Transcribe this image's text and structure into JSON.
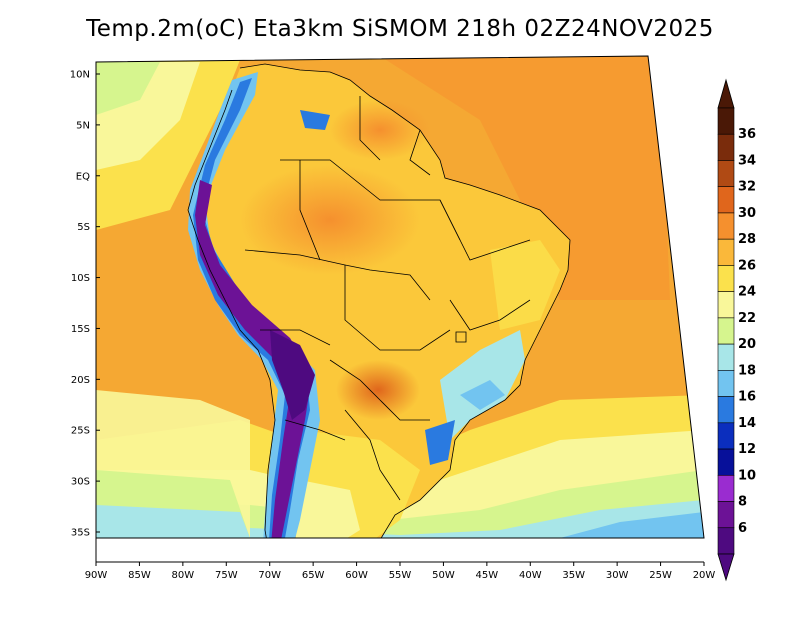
{
  "title": "Temp.2m(oC) Eta3km SiSMOM 218h 02Z24NOV2025",
  "map": {
    "lat_labels": [
      {
        "text": "10N",
        "lat": 10
      },
      {
        "text": "5N",
        "lat": 5
      },
      {
        "text": "EQ",
        "lat": 0
      },
      {
        "text": "5S",
        "lat": -5
      },
      {
        "text": "10S",
        "lat": -10
      },
      {
        "text": "15S",
        "lat": -15
      },
      {
        "text": "20S",
        "lat": -20
      },
      {
        "text": "25S",
        "lat": -25
      },
      {
        "text": "30S",
        "lat": -30
      },
      {
        "text": "35S",
        "lat": -35
      }
    ],
    "lon_labels": [
      {
        "text": "90W",
        "lon": -90
      },
      {
        "text": "85W",
        "lon": -85
      },
      {
        "text": "80W",
        "lon": -80
      },
      {
        "text": "75W",
        "lon": -75
      },
      {
        "text": "70W",
        "lon": -70
      },
      {
        "text": "65W",
        "lon": -65
      },
      {
        "text": "60W",
        "lon": -60
      },
      {
        "text": "55W",
        "lon": -55
      },
      {
        "text": "50W",
        "lon": -50
      },
      {
        "text": "45W",
        "lon": -45
      },
      {
        "text": "40W",
        "lon": -40
      },
      {
        "text": "35W",
        "lon": -35
      },
      {
        "text": "30W",
        "lon": -30
      },
      {
        "text": "25W",
        "lon": -25
      },
      {
        "text": "20W",
        "lon": -20
      }
    ],
    "ocean_color": "#fdb238",
    "land_color": "#fbc83a"
  },
  "colorbar": {
    "labels": [
      "36",
      "34",
      "32",
      "30",
      "28",
      "26",
      "24",
      "22",
      "20",
      "18",
      "16",
      "14",
      "12",
      "10",
      "8",
      "6"
    ],
    "colors": [
      "#4a1806",
      "#7a2c0c",
      "#b04a14",
      "#e0661c",
      "#f5902e",
      "#fab83a",
      "#fbe14c",
      "#f9f79a",
      "#d6f58e",
      "#a8e6e8",
      "#72c4f0",
      "#2a7ae0",
      "#0b2ebe",
      "#07109a",
      "#9a2cd0",
      "#6c1296",
      "#4e0a80"
    ],
    "top_arrow_color": "#4a1806",
    "bottom_arrow_color": "#4e0a80"
  }
}
